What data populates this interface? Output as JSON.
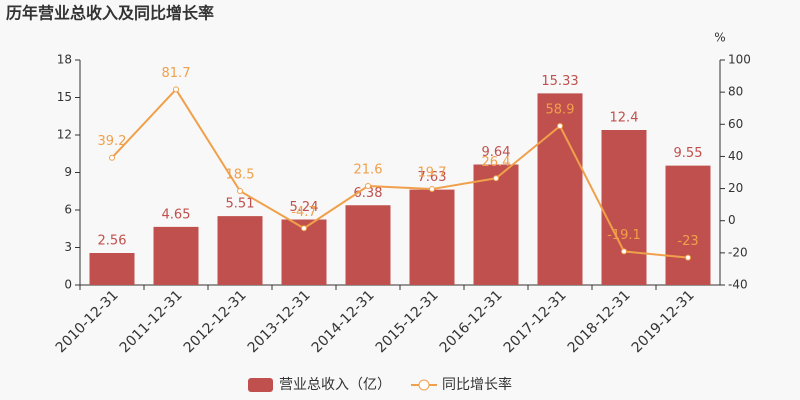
{
  "chart_data": {
    "type": "bar",
    "title": "历年营业总收入及同比增长率",
    "y2_label": "%",
    "categories": [
      "2010-12-31",
      "2011-12-31",
      "2012-12-31",
      "2013-12-31",
      "2014-12-31",
      "2015-12-31",
      "2016-12-31",
      "2017-12-31",
      "2018-12-31",
      "2019-12-31"
    ],
    "series": [
      {
        "name": "营业总收入（亿）",
        "type": "bar",
        "color": "#c0504d",
        "values": [
          2.56,
          4.65,
          5.51,
          5.24,
          6.38,
          7.63,
          9.64,
          15.33,
          12.4,
          9.55
        ]
      },
      {
        "name": "同比增长率",
        "type": "line",
        "axis": "y2",
        "color": "#f0a04b",
        "values": [
          39.2,
          81.7,
          18.5,
          -4.7,
          21.6,
          19.7,
          26.4,
          58.9,
          -19.1,
          -23
        ]
      }
    ],
    "ylim": [
      0,
      18
    ],
    "yticks": [
      0,
      3,
      6,
      9,
      12,
      15,
      18
    ],
    "y2lim": [
      -40,
      100
    ],
    "y2ticks": [
      -40,
      -20,
      0,
      20,
      40,
      60,
      80,
      100
    ],
    "legend": "bottom"
  }
}
